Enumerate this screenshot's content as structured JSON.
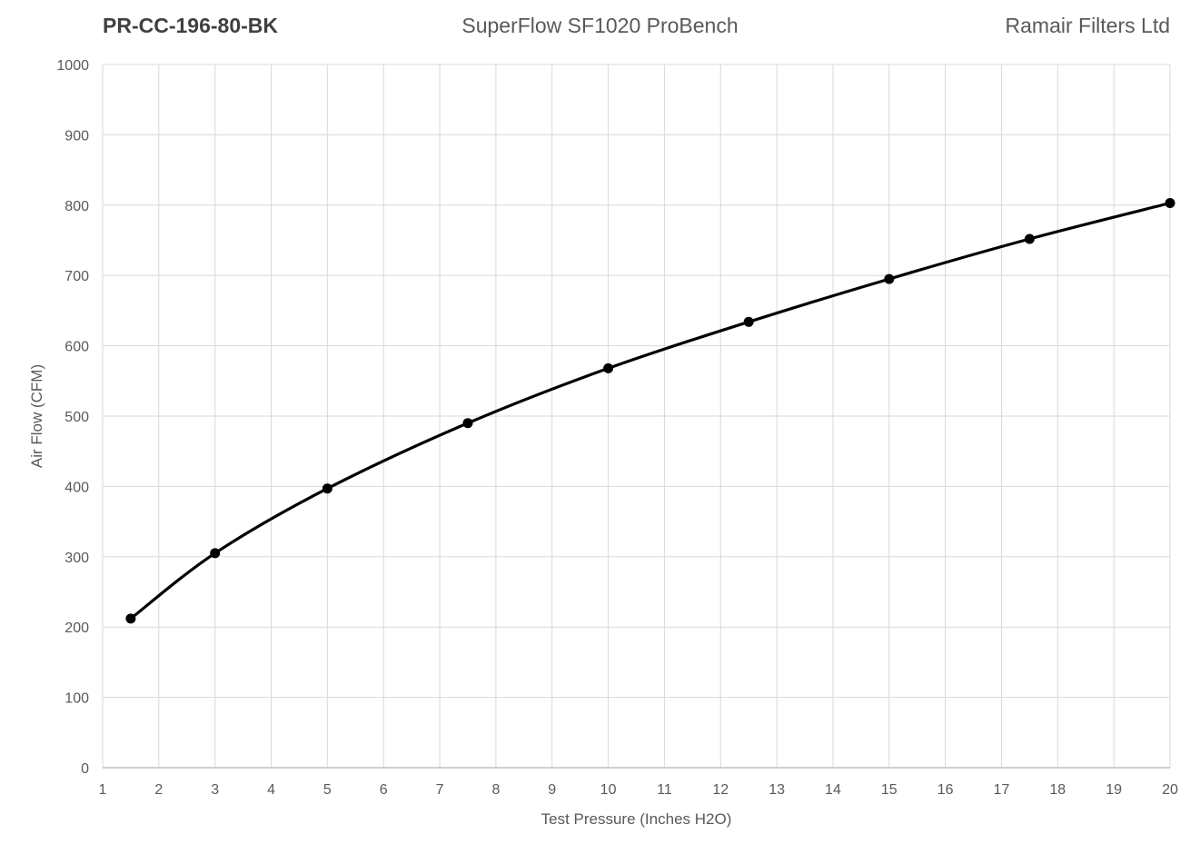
{
  "header": {
    "part_number": "PR-CC-196-80-BK",
    "bench_title": "SuperFlow SF1020 ProBench",
    "company": "Ramair Filters Ltd"
  },
  "chart_data": {
    "type": "line",
    "style": "smooth line with black circular markers (flow-bench test curve)",
    "title": "SuperFlow SF1020 ProBench",
    "xlabel": "Test Pressure (Inches H2O)",
    "ylabel": "Air Flow (CFM)",
    "x": [
      1.5,
      3,
      5,
      7.5,
      10,
      12.5,
      15,
      17.5,
      20
    ],
    "series": [
      {
        "name": "Air Flow (CFM)",
        "values": [
          212,
          305,
          397,
          490,
          568,
          634,
          695,
          752,
          803
        ]
      }
    ],
    "xlim": [
      1,
      20
    ],
    "ylim": [
      0,
      1000
    ],
    "xticks": [
      1,
      2,
      3,
      4,
      5,
      6,
      7,
      8,
      9,
      10,
      11,
      12,
      13,
      14,
      15,
      16,
      17,
      18,
      19,
      20
    ],
    "yticks": [
      0,
      100,
      200,
      300,
      400,
      500,
      600,
      700,
      800,
      900,
      1000
    ],
    "grid": true,
    "legend_position": "none",
    "colors": {
      "line": "#000000",
      "marker": "#000000",
      "gridline": "#d9d9d9",
      "axis_line": "#bfbfbf",
      "tick_text": "#595959",
      "axis_title_text": "#595959",
      "center_title_text": "#595959",
      "part_number_text": "#404040",
      "background": "#ffffff"
    }
  }
}
